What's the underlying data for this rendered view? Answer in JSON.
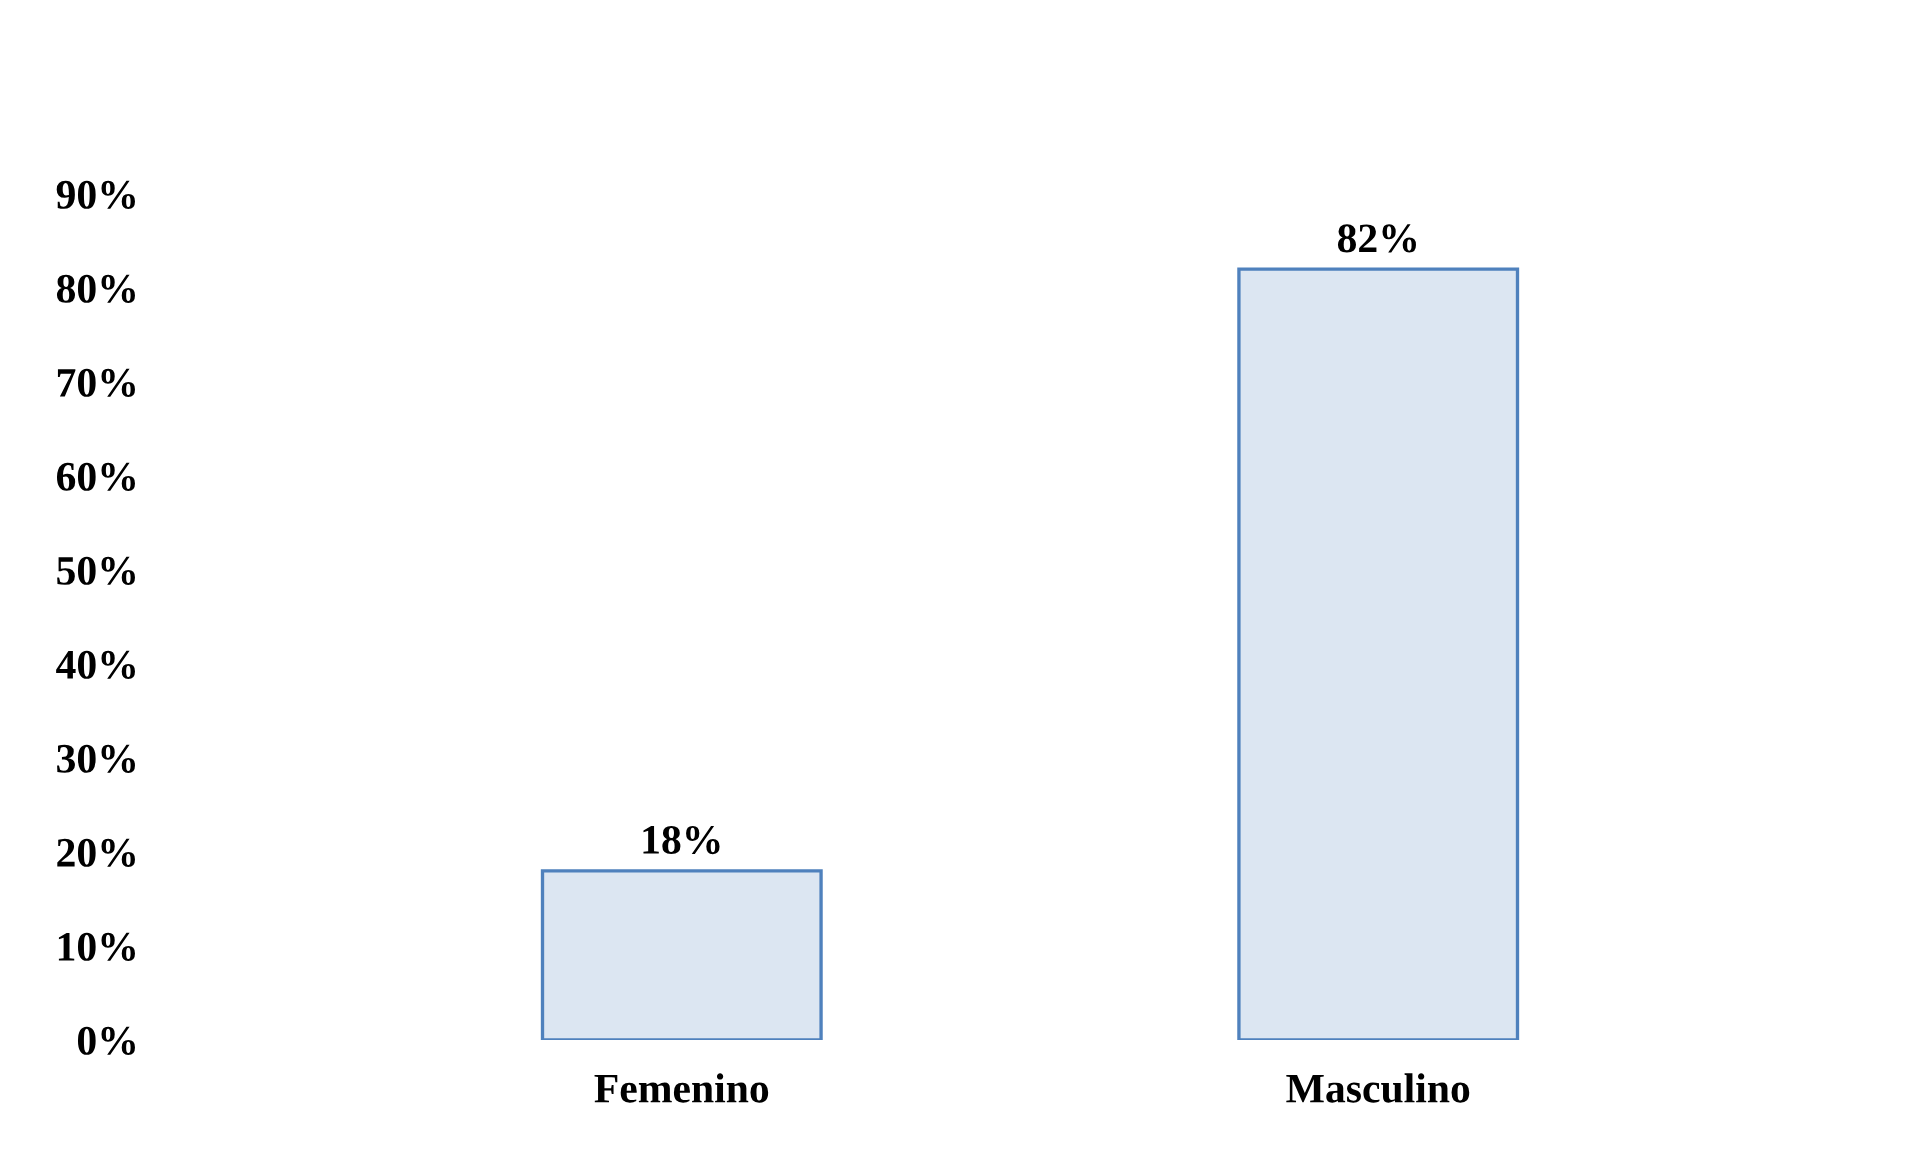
{
  "chart_data": {
    "type": "bar",
    "categories": [
      "Femenino",
      "Masculino"
    ],
    "values": [
      18,
      82
    ],
    "color": "#dce6f2",
    "value_labels": [
      "18%",
      "82%"
    ],
    "ylim": [
      0,
      90
    ],
    "yticks": [
      {
        "value": 0,
        "label": "0%"
      },
      {
        "value": 10,
        "label": "10%"
      },
      {
        "value": 20,
        "label": "20%"
      },
      {
        "value": 30,
        "label": "30%"
      },
      {
        "value": 40,
        "label": "40%"
      },
      {
        "value": 50,
        "label": "50%"
      },
      {
        "value": 60,
        "label": "60%"
      },
      {
        "value": 70,
        "label": "70%"
      },
      {
        "value": 80,
        "label": "80%"
      },
      {
        "value": 90,
        "label": "90%"
      }
    ],
    "grid": false,
    "legend": false
  }
}
